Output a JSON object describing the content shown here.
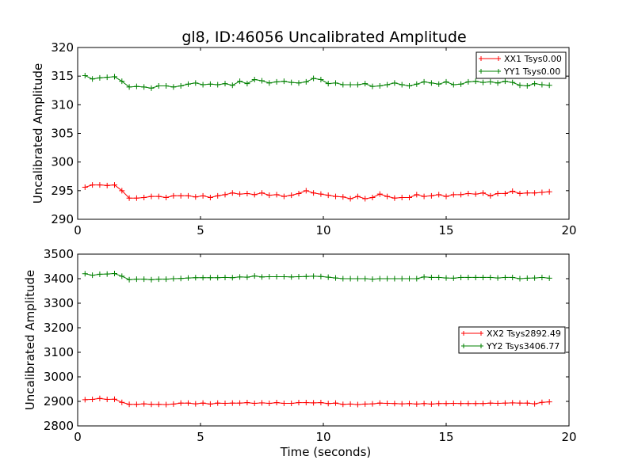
{
  "title": "gl8, ID:46056 Uncalibrated Amplitude",
  "chart_data": [
    {
      "type": "line",
      "ylabel": "Uncalibrated Amplitude",
      "xlabel": "",
      "xlim": [
        0,
        20
      ],
      "ylim": [
        290,
        320
      ],
      "xticks": [
        "0",
        "5",
        "10",
        "15",
        "20"
      ],
      "yticks": [
        "290",
        "295",
        "300",
        "305",
        "310",
        "315",
        "320"
      ],
      "legend_position": "top-right",
      "x": [
        0.3,
        0.6,
        0.9,
        1.2,
        1.5,
        1.8,
        2.1,
        2.4,
        2.7,
        3.0,
        3.3,
        3.6,
        3.9,
        4.2,
        4.5,
        4.8,
        5.1,
        5.4,
        5.7,
        6.0,
        6.3,
        6.6,
        6.9,
        7.2,
        7.5,
        7.8,
        8.1,
        8.4,
        8.7,
        9.0,
        9.3,
        9.6,
        9.9,
        10.2,
        10.5,
        10.8,
        11.1,
        11.4,
        11.7,
        12.0,
        12.3,
        12.6,
        12.9,
        13.2,
        13.5,
        13.8,
        14.1,
        14.4,
        14.7,
        15.0,
        15.3,
        15.6,
        15.9,
        16.2,
        16.5,
        16.8,
        17.1,
        17.4,
        17.7,
        18.0,
        18.3,
        18.6,
        18.9,
        19.2
      ],
      "series": [
        {
          "name": "XX1 Tsys0.00",
          "color": "#ff0000",
          "values": [
            295.6,
            296.0,
            296.0,
            295.9,
            296.0,
            295.0,
            293.7,
            293.7,
            293.8,
            294.0,
            294.0,
            293.8,
            294.1,
            294.1,
            294.1,
            293.9,
            294.1,
            293.8,
            294.1,
            294.3,
            294.6,
            294.4,
            294.5,
            294.3,
            294.6,
            294.2,
            294.3,
            294.0,
            294.2,
            294.5,
            295.0,
            294.6,
            294.4,
            294.2,
            294.0,
            293.9,
            293.6,
            294.0,
            293.6,
            293.8,
            294.4,
            294.0,
            293.7,
            293.8,
            293.8,
            294.3,
            294.0,
            294.1,
            294.3,
            294.0,
            294.3,
            294.3,
            294.5,
            294.4,
            294.6,
            294.1,
            294.5,
            294.5,
            294.9,
            294.5,
            294.6,
            294.6,
            294.7,
            294.8
          ]
        },
        {
          "name": "YY1 Tsys0.00",
          "color": "#008000",
          "values": [
            315.1,
            314.5,
            314.7,
            314.8,
            314.9,
            314.1,
            313.1,
            313.2,
            313.1,
            312.9,
            313.3,
            313.3,
            313.1,
            313.3,
            313.6,
            313.8,
            313.5,
            313.6,
            313.5,
            313.7,
            313.4,
            314.1,
            313.7,
            314.4,
            314.2,
            313.8,
            314.0,
            314.1,
            313.9,
            313.8,
            314.0,
            314.6,
            314.4,
            313.7,
            313.8,
            313.5,
            313.5,
            313.5,
            313.7,
            313.2,
            313.3,
            313.5,
            313.8,
            313.5,
            313.3,
            313.6,
            314.0,
            313.8,
            313.6,
            314.0,
            313.5,
            313.6,
            314.0,
            314.1,
            313.9,
            314.0,
            313.8,
            314.1,
            313.9,
            313.4,
            313.3,
            313.7,
            313.5,
            313.4
          ]
        }
      ]
    },
    {
      "type": "line",
      "ylabel": "Uncalibrated Amplitude",
      "xlabel": "Time (seconds)",
      "xlim": [
        0,
        20
      ],
      "ylim": [
        2800,
        3500
      ],
      "xticks": [
        "0",
        "5",
        "10",
        "15",
        "20"
      ],
      "yticks": [
        "2800",
        "2900",
        "3000",
        "3100",
        "3200",
        "3300",
        "3400",
        "3500"
      ],
      "legend_position": "center-right",
      "x": [
        0.3,
        0.6,
        0.9,
        1.2,
        1.5,
        1.8,
        2.1,
        2.4,
        2.7,
        3.0,
        3.3,
        3.6,
        3.9,
        4.2,
        4.5,
        4.8,
        5.1,
        5.4,
        5.7,
        6.0,
        6.3,
        6.6,
        6.9,
        7.2,
        7.5,
        7.8,
        8.1,
        8.4,
        8.7,
        9.0,
        9.3,
        9.6,
        9.9,
        10.2,
        10.5,
        10.8,
        11.1,
        11.4,
        11.7,
        12.0,
        12.3,
        12.6,
        12.9,
        13.2,
        13.5,
        13.8,
        14.1,
        14.4,
        14.7,
        15.0,
        15.3,
        15.6,
        15.9,
        16.2,
        16.5,
        16.8,
        17.1,
        17.4,
        17.7,
        18.0,
        18.3,
        18.6,
        18.9,
        19.2
      ],
      "series": [
        {
          "name": "XX2 Tsys2892.49",
          "color": "#ff0000",
          "values": [
            2907,
            2908,
            2912,
            2908,
            2909,
            2896,
            2888,
            2888,
            2890,
            2888,
            2888,
            2887,
            2889,
            2893,
            2893,
            2890,
            2893,
            2889,
            2893,
            2892,
            2893,
            2893,
            2895,
            2892,
            2894,
            2892,
            2895,
            2892,
            2892,
            2895,
            2895,
            2894,
            2895,
            2891,
            2893,
            2888,
            2889,
            2887,
            2889,
            2890,
            2893,
            2892,
            2891,
            2890,
            2891,
            2889,
            2891,
            2889,
            2891,
            2891,
            2892,
            2891,
            2891,
            2891,
            2891,
            2893,
            2892,
            2893,
            2894,
            2893,
            2893,
            2890,
            2896,
            2898
          ]
        },
        {
          "name": "YY2 Tsys3406.77",
          "color": "#008000",
          "values": [
            3420,
            3414,
            3418,
            3419,
            3421,
            3410,
            3396,
            3398,
            3398,
            3396,
            3398,
            3398,
            3400,
            3401,
            3403,
            3404,
            3404,
            3404,
            3404,
            3405,
            3404,
            3407,
            3406,
            3411,
            3407,
            3408,
            3408,
            3408,
            3407,
            3408,
            3409,
            3410,
            3409,
            3406,
            3403,
            3400,
            3400,
            3400,
            3400,
            3398,
            3400,
            3400,
            3400,
            3400,
            3400,
            3400,
            3407,
            3405,
            3405,
            3403,
            3402,
            3405,
            3405,
            3405,
            3405,
            3405,
            3403,
            3405,
            3405,
            3400,
            3402,
            3403,
            3405,
            3402
          ]
        }
      ]
    }
  ]
}
